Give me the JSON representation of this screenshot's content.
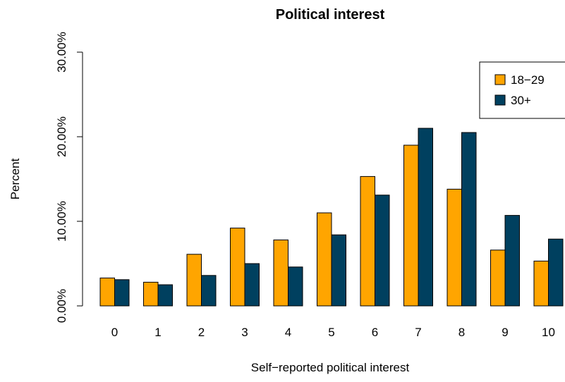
{
  "chart_data": {
    "type": "bar",
    "title": "Political interest",
    "xlabel": "Self−reported political interest",
    "ylabel": "Percent",
    "categories": [
      "0",
      "1",
      "2",
      "3",
      "4",
      "5",
      "6",
      "7",
      "8",
      "9",
      "10"
    ],
    "series": [
      {
        "name": "18−29",
        "color": "#FFA500",
        "values": [
          3.3,
          2.8,
          6.1,
          9.2,
          7.8,
          11.0,
          15.3,
          19.0,
          13.8,
          6.6,
          5.3
        ]
      },
      {
        "name": "30+",
        "color": "#00405F",
        "values": [
          3.1,
          2.5,
          3.6,
          5.0,
          4.6,
          8.4,
          13.1,
          21.0,
          20.5,
          10.7,
          7.9
        ]
      }
    ],
    "yticks": [
      0,
      10,
      20,
      30
    ],
    "ytick_labels": [
      "0.00%",
      "10.00%",
      "20.00%",
      "30.00%"
    ],
    "ylim": [
      0,
      30
    ],
    "legend_position": "top-right",
    "grid": false
  }
}
